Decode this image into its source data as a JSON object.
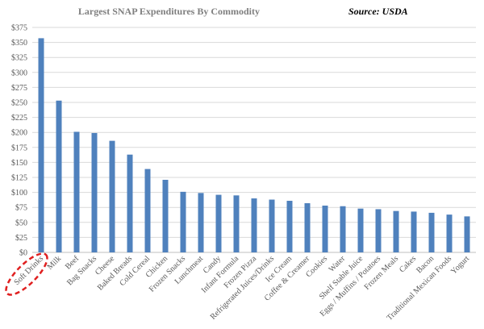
{
  "chart_data": {
    "type": "bar",
    "title": "Largest SNAP Expenditures By Commodity",
    "source": "Source:  USDA",
    "categories": [
      "Soft Drinks",
      "Milk",
      "Beef",
      "Bag Snacks",
      "Cheese",
      "Baked Breads",
      "Cold Cereal",
      "Chicken",
      "Frozen Snacks",
      "Lunchmeat",
      "Candy",
      "Infant Formula",
      "Frozen Pizza",
      "Refrigerated Juices/Drinks",
      "Ice Cream",
      "Coffee & Creamer",
      "Cookies",
      "Water",
      "Shelf Stable Juice",
      "Eggs / Muffins / Potatoes",
      "Frozen Meals",
      "Cakes",
      "Bacon",
      "Traditional Mexican Foods",
      "Yogurt"
    ],
    "values": [
      357,
      253,
      201,
      199,
      186,
      163,
      139,
      121,
      101,
      99,
      96,
      95,
      90,
      88,
      86,
      82,
      78,
      77,
      73,
      72,
      69,
      68,
      66,
      63,
      60
    ],
    "color": "#4f81bd",
    "ylim": [
      0,
      375
    ],
    "yticks": [
      {
        "value": 0,
        "label": "$0"
      },
      {
        "value": 25,
        "label": "$25"
      },
      {
        "value": 50,
        "label": "$50"
      },
      {
        "value": 75,
        "label": "$75"
      },
      {
        "value": 100,
        "label": "$100"
      },
      {
        "value": 125,
        "label": "$125"
      },
      {
        "value": 150,
        "label": "$150"
      },
      {
        "value": 175,
        "label": "$175"
      },
      {
        "value": 200,
        "label": "$200"
      },
      {
        "value": 225,
        "label": "$225"
      },
      {
        "value": 250,
        "label": "$250"
      },
      {
        "value": 275,
        "label": "$275"
      },
      {
        "value": 300,
        "label": "$300"
      },
      {
        "value": 325,
        "label": "$325"
      },
      {
        "value": 350,
        "label": "$350"
      },
      {
        "value": 375,
        "label": "$375"
      }
    ],
    "grid": true
  }
}
